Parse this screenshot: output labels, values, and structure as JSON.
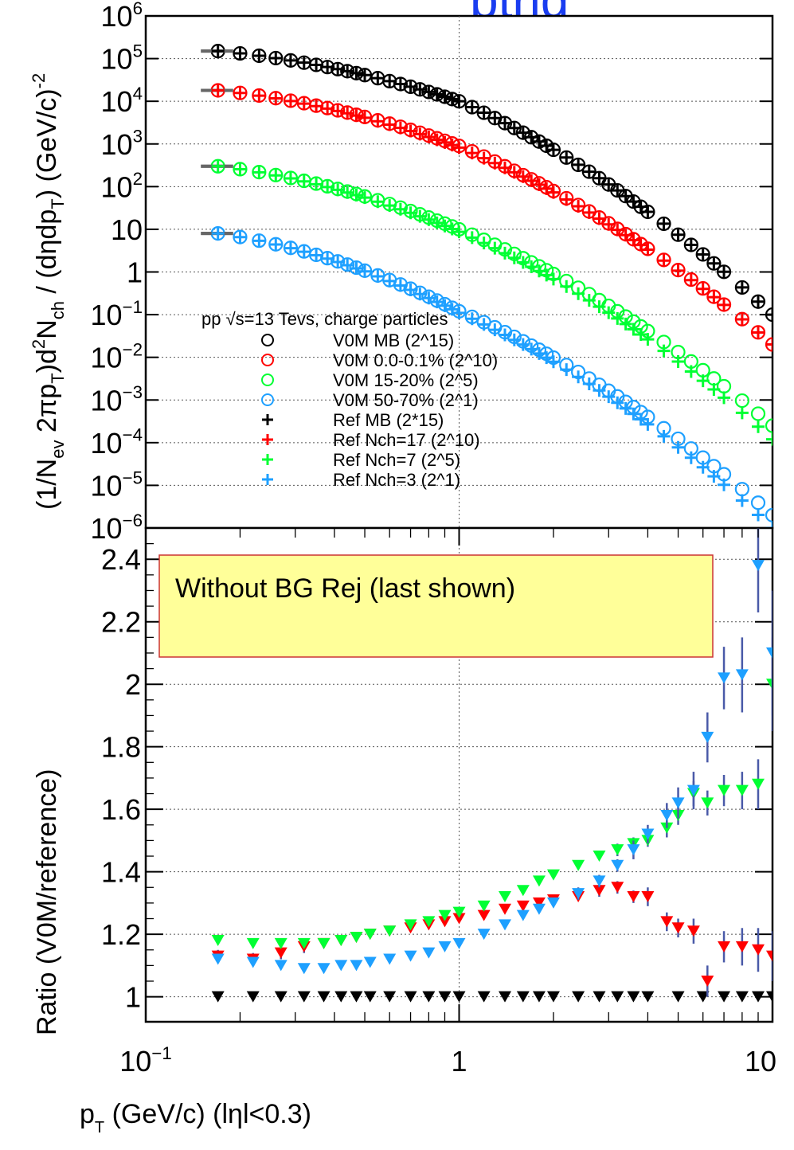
{
  "header": {
    "partial_title": "ptrig"
  },
  "chart_data": [
    {
      "type": "scatter",
      "id": "spectra",
      "ylabel_html": "(1/N<sub>ev</sub> 2πp<sub>T</sub>)d<sup>2</sup>N<sub>ch</sub> / (dηdp<sub>T</sub>) (GeV/c)<sup>-2</sup>",
      "ylabel_text": "(1/N_ev 2πp_T)d²N_ch / (dηdp_T) (GeV/c)⁻²",
      "ylim": [
        1e-06,
        1000000.0
      ],
      "xlim": [
        0.1,
        10
      ],
      "log_x": true,
      "log_y": true,
      "yticks": [
        {
          "v": 1000000.0,
          "mant": "10",
          "exp": "6"
        },
        {
          "v": 100000.0,
          "mant": "10",
          "exp": "5"
        },
        {
          "v": 10000.0,
          "mant": "10",
          "exp": "4"
        },
        {
          "v": 1000.0,
          "mant": "10",
          "exp": "3"
        },
        {
          "v": 100.0,
          "mant": "10",
          "exp": "2"
        },
        {
          "v": 10,
          "mant": "10",
          "exp": ""
        },
        {
          "v": 1,
          "mant": "1",
          "exp": ""
        },
        {
          "v": 0.1,
          "mant": "10",
          "exp": "−1"
        },
        {
          "v": 0.01,
          "mant": "10",
          "exp": "−2"
        },
        {
          "v": 0.001,
          "mant": "10",
          "exp": "−3"
        },
        {
          "v": 0.0001,
          "mant": "10",
          "exp": "−4"
        },
        {
          "v": 1e-05,
          "mant": "10",
          "exp": "−5"
        },
        {
          "v": 1e-06,
          "mant": "10",
          "exp": "−6"
        }
      ],
      "grid": true,
      "legend": {
        "placement": "center-left",
        "header": "pp √s=13 Tevs, charge particles",
        "entries": [
          {
            "marker": "circle",
            "color": "#000000",
            "label": "V0M MB   (2^15)"
          },
          {
            "marker": "circle",
            "color": "#ff0000",
            "label": "V0M 0.0-0.1% (2^10)"
          },
          {
            "marker": "circle",
            "color": "#00ff33",
            "label": "V0M 15-20% (2^5)"
          },
          {
            "marker": "circle",
            "color": "#1ea0ff",
            "label": "V0M 50-70% (2^1)"
          },
          {
            "marker": "cross",
            "color": "#000000",
            "label": "Ref MB (2*15)"
          },
          {
            "marker": "cross",
            "color": "#ff0000",
            "label": "Ref Nch=17 (2^10)"
          },
          {
            "marker": "cross",
            "color": "#00ff33",
            "label": "Ref Nch=7 (2^5)"
          },
          {
            "marker": "cross",
            "color": "#1ea0ff",
            "label": "Ref Nch=3 (2^1)"
          }
        ]
      },
      "x_points": [
        0.17,
        0.2,
        0.23,
        0.26,
        0.29,
        0.32,
        0.35,
        0.38,
        0.41,
        0.44,
        0.47,
        0.5,
        0.55,
        0.6,
        0.65,
        0.7,
        0.75,
        0.8,
        0.85,
        0.9,
        0.95,
        1.0,
        1.1,
        1.2,
        1.3,
        1.4,
        1.5,
        1.6,
        1.7,
        1.8,
        1.9,
        2.0,
        2.2,
        2.4,
        2.6,
        2.8,
        3.0,
        3.2,
        3.4,
        3.6,
        3.8,
        4.0,
        4.5,
        5.0,
        5.5,
        6.0,
        6.5,
        7.0,
        8.0,
        9.0,
        10.0
      ],
      "series": [
        {
          "name": "V0M MB   (2^15)",
          "color": "#000000",
          "marker": "circle",
          "y_at_0.17": 150000,
          "y_at_1": 10000,
          "y_at_10": 0.1
        },
        {
          "name": "V0M 0.0-0.1% (2^10)",
          "color": "#ff0000",
          "marker": "circle",
          "y_at_0.17": 18000,
          "y_at_1": 900,
          "y_at_10": 0.02
        },
        {
          "name": "V0M 15-20% (2^5)",
          "color": "#00ff33",
          "marker": "circle",
          "y_at_0.17": 300,
          "y_at_1": 10,
          "y_at_10": 0.00025
        },
        {
          "name": "V0M 50-70% (2^1)",
          "color": "#1ea0ff",
          "marker": "circle",
          "y_at_0.17": 8,
          "y_at_1": 0.12,
          "y_at_10": 2e-06
        },
        {
          "name": "Ref MB (2*15)",
          "color": "#000000",
          "marker": "cross",
          "y_at_0.17": 150000,
          "y_at_1": 10000,
          "y_at_10": 0.1
        },
        {
          "name": "Ref Nch=17 (2^10)",
          "color": "#ff0000",
          "marker": "cross",
          "y_at_0.17": 18000,
          "y_at_1": 820,
          "y_at_10": 0.02
        },
        {
          "name": "Ref Nch=7 (2^5)",
          "color": "#00ff33",
          "marker": "cross",
          "y_at_0.17": 300,
          "y_at_1": 8.7,
          "y_at_10": 0.00012
        },
        {
          "name": "Ref Nch=3 (2^1)",
          "color": "#1ea0ff",
          "marker": "cross",
          "y_at_0.17": 8,
          "y_at_1": 0.11,
          "y_at_10": 1e-06
        }
      ]
    },
    {
      "type": "scatter",
      "id": "ratio",
      "ylabel": "Ratio (V0M/reference)",
      "xlabel_html": "p<sub>T</sub> (GeV/c) (lηl<0.3)",
      "xlabel_text": "p_T (GeV/c) (lηl<0.3)",
      "xlim": [
        0.1,
        10
      ],
      "ylim": [
        0.92,
        2.5
      ],
      "log_x": true,
      "yticks": [
        {
          "v": 1,
          "label": "1"
        },
        {
          "v": 1.2,
          "label": "1.2"
        },
        {
          "v": 1.4,
          "label": "1.4"
        },
        {
          "v": 1.6,
          "label": "1.6"
        },
        {
          "v": 1.8,
          "label": "1.8"
        },
        {
          "v": 2.0,
          "label": "2"
        },
        {
          "v": 2.2,
          "label": "2.2"
        },
        {
          "v": 2.4,
          "label": "2.4"
        }
      ],
      "xticks": [
        {
          "v": 0.1,
          "mant": "10",
          "exp": "−1"
        },
        {
          "v": 1,
          "mant": "1",
          "exp": ""
        },
        {
          "v": 10,
          "mant": "10",
          "exp": ""
        }
      ],
      "grid": true,
      "annotation": "Without BG Rej (last shown)",
      "annotation_bg": "#ffff99",
      "annotation_border": "#cc3333",
      "marker": "triangle-down",
      "series": [
        {
          "name": "V0M MB / Ref MB",
          "color": "#000000",
          "x": [
            0.17,
            0.22,
            0.27,
            0.32,
            0.37,
            0.42,
            0.47,
            0.52,
            0.6,
            0.7,
            0.8,
            0.9,
            1.0,
            1.2,
            1.4,
            1.6,
            1.8,
            2.0,
            2.4,
            2.8,
            3.2,
            3.6,
            4.0,
            5.0,
            6.0,
            7.0,
            8.0,
            9.0,
            10.0
          ],
          "y": [
            1,
            1,
            1,
            1,
            1,
            1,
            1,
            1,
            1,
            1,
            1,
            1,
            1,
            1,
            1,
            1,
            1,
            1,
            1,
            1,
            1,
            1,
            1,
            1,
            1,
            1,
            1,
            1,
            1
          ]
        },
        {
          "name": "V0M 0.0-0.1% / Ref Nch=17",
          "color": "#ff0000",
          "x": [
            0.17,
            0.22,
            0.27,
            0.32,
            0.37,
            0.42,
            0.47,
            0.52,
            0.6,
            0.7,
            0.8,
            0.9,
            1.0,
            1.2,
            1.4,
            1.6,
            1.8,
            2.0,
            2.4,
            2.8,
            3.2,
            3.6,
            4.0,
            4.6,
            5.0,
            5.6,
            6.2,
            7.0,
            8.0,
            9.0,
            10.0
          ],
          "y": [
            1.13,
            1.12,
            1.14,
            1.16,
            1.17,
            1.18,
            1.19,
            1.2,
            1.21,
            1.22,
            1.23,
            1.24,
            1.25,
            1.26,
            1.28,
            1.29,
            1.3,
            1.31,
            1.32,
            1.34,
            1.35,
            1.32,
            1.32,
            1.24,
            1.22,
            1.21,
            1.05,
            1.16,
            1.16,
            1.15,
            1.13
          ],
          "yerr": [
            0.02,
            0.02,
            0.02,
            0.02,
            0.01,
            0.01,
            0.01,
            0.01,
            0.01,
            0.01,
            0.01,
            0.01,
            0.01,
            0.01,
            0.01,
            0.01,
            0.01,
            0.01,
            0.01,
            0.02,
            0.02,
            0.02,
            0.03,
            0.03,
            0.03,
            0.04,
            0.05,
            0.05,
            0.06,
            0.07,
            0.08
          ]
        },
        {
          "name": "V0M 15-20% / Ref Nch=7",
          "color": "#00ff33",
          "x": [
            0.17,
            0.22,
            0.27,
            0.32,
            0.37,
            0.42,
            0.47,
            0.52,
            0.6,
            0.7,
            0.8,
            0.9,
            1.0,
            1.2,
            1.4,
            1.6,
            1.8,
            2.0,
            2.4,
            2.8,
            3.2,
            3.6,
            4.0,
            4.6,
            5.0,
            5.6,
            6.2,
            7.0,
            8.0,
            9.0,
            10.0
          ],
          "y": [
            1.18,
            1.17,
            1.17,
            1.17,
            1.17,
            1.18,
            1.19,
            1.2,
            1.21,
            1.23,
            1.24,
            1.26,
            1.27,
            1.29,
            1.32,
            1.34,
            1.37,
            1.39,
            1.42,
            1.45,
            1.47,
            1.49,
            1.5,
            1.54,
            1.58,
            1.65,
            1.62,
            1.66,
            1.66,
            1.68,
            2.0
          ],
          "yerr": [
            0.01,
            0.01,
            0.01,
            0.01,
            0.01,
            0.01,
            0.01,
            0.01,
            0.01,
            0.01,
            0.01,
            0.01,
            0.01,
            0.01,
            0.01,
            0.01,
            0.01,
            0.01,
            0.01,
            0.01,
            0.02,
            0.02,
            0.02,
            0.03,
            0.03,
            0.04,
            0.04,
            0.05,
            0.06,
            0.08,
            0.15
          ]
        },
        {
          "name": "V0M 50-70% / Ref Nch=3",
          "color": "#1ea0ff",
          "x": [
            0.17,
            0.22,
            0.27,
            0.32,
            0.37,
            0.42,
            0.47,
            0.52,
            0.6,
            0.7,
            0.8,
            0.9,
            1.0,
            1.2,
            1.4,
            1.6,
            1.8,
            2.0,
            2.4,
            2.8,
            3.2,
            3.6,
            4.0,
            4.6,
            5.0,
            5.6,
            6.2,
            7.0,
            8.0,
            9.0,
            10.0
          ],
          "y": [
            1.12,
            1.11,
            1.1,
            1.09,
            1.09,
            1.1,
            1.1,
            1.11,
            1.12,
            1.13,
            1.14,
            1.16,
            1.17,
            1.2,
            1.23,
            1.26,
            1.28,
            1.3,
            1.33,
            1.37,
            1.42,
            1.47,
            1.52,
            1.58,
            1.62,
            1.66,
            1.83,
            2.02,
            2.03,
            2.38,
            2.1
          ],
          "yerr": [
            0.01,
            0.01,
            0.01,
            0.01,
            0.01,
            0.01,
            0.01,
            0.01,
            0.01,
            0.01,
            0.01,
            0.01,
            0.01,
            0.01,
            0.01,
            0.01,
            0.01,
            0.01,
            0.02,
            0.02,
            0.02,
            0.03,
            0.03,
            0.04,
            0.05,
            0.06,
            0.08,
            0.1,
            0.12,
            0.15,
            0.2
          ]
        }
      ]
    }
  ]
}
